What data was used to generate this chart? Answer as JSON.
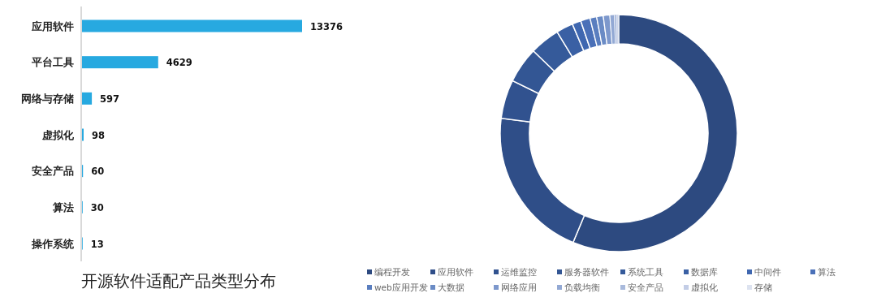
{
  "chart_data": [
    {
      "type": "bar",
      "orientation": "horizontal",
      "title": "开源软件适配产品类型分布",
      "categories": [
        "应用软件",
        "平台工具",
        "网络与存储",
        "虚拟化",
        "安全产品",
        "算法",
        "操作系统"
      ],
      "values": [
        13376,
        4629,
        597,
        98,
        60,
        30,
        13
      ],
      "color": "#27a9e0",
      "data_labels": true
    },
    {
      "type": "donut",
      "legend": "bottom",
      "categories": [
        "编程开发",
        "应用软件",
        "运维监控",
        "服务器软件",
        "系统工具",
        "数据库",
        "中间件",
        "算法",
        "web应用开发",
        "大数据",
        "网络应用",
        "负载均衡",
        "安全产品",
        "虚拟化",
        "存储"
      ],
      "values": [
        56.3,
        20.7,
        5.3,
        4.9,
        4.1,
        2.3,
        1.2,
        1.3,
        0.9,
        0.9,
        0.9,
        0.6,
        0.3,
        0.2,
        0.1
      ],
      "colors": [
        "#2d4a80",
        "#2f4e88",
        "#31528f",
        "#335694",
        "#355a9a",
        "#3a60a4",
        "#3f67b0",
        "#4a70b8",
        "#5a7ebf",
        "#6a8bc5",
        "#7d98cc",
        "#93a9d4",
        "#a9badc",
        "#c3cde6",
        "#dde3f0"
      ]
    }
  ]
}
